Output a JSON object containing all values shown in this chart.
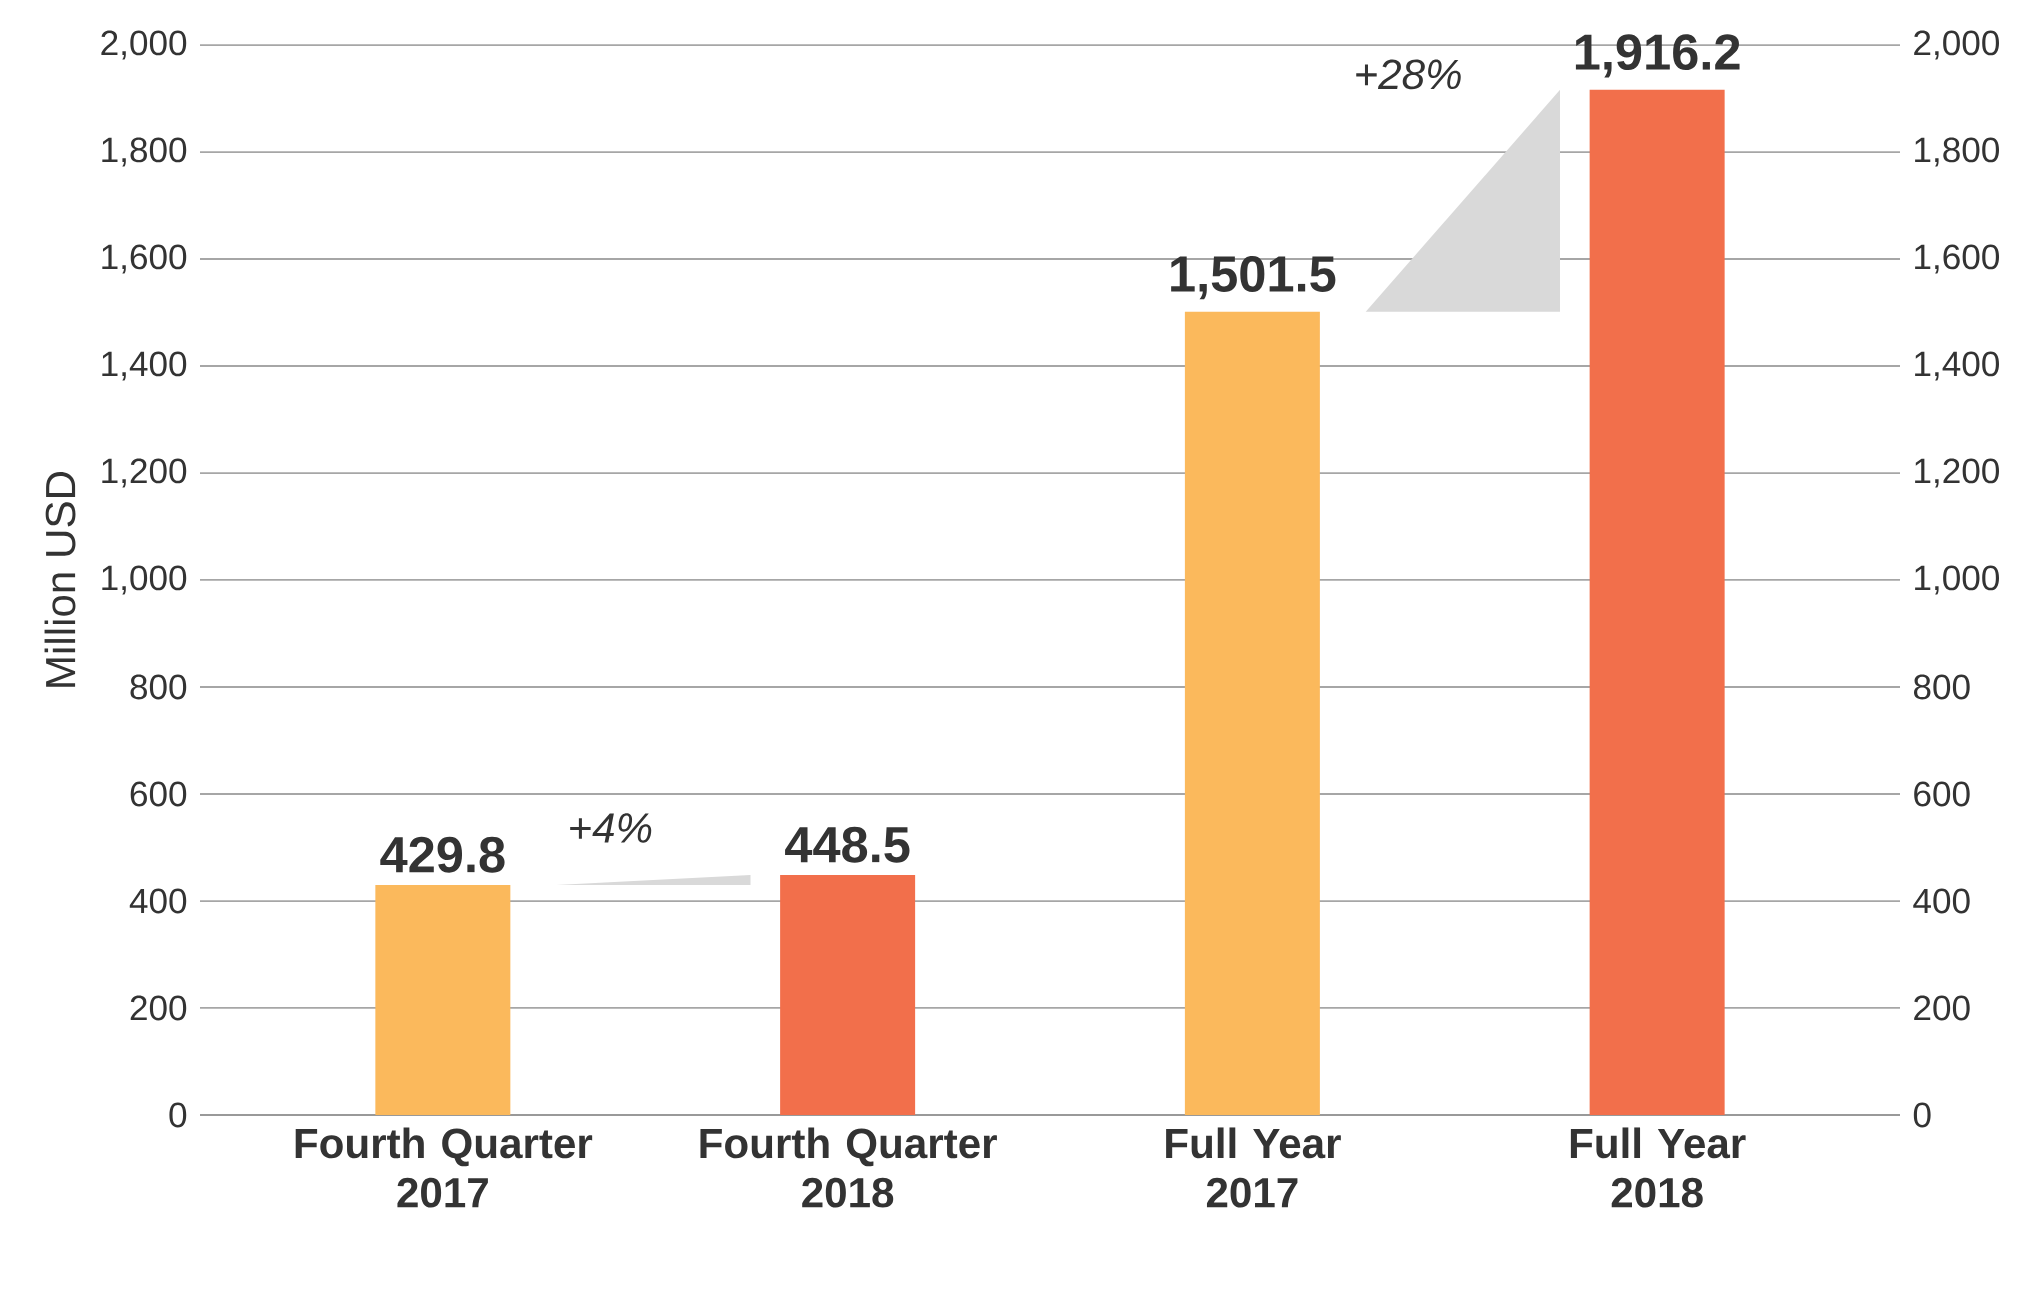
{
  "chart_data": {
    "type": "bar",
    "ylabel": "Million USD",
    "categories": [
      "Fourth Quarter\n2017",
      "Fourth Quarter\n2018",
      "Full Year\n2017",
      "Full Year\n2018"
    ],
    "values": [
      429.8,
      448.5,
      1501.5,
      1916.2
    ],
    "colors": [
      "#fbb95c",
      "#f26f4b",
      "#fbb95c",
      "#f26f4b"
    ],
    "value_labels": [
      "429.8",
      "448.5",
      "1,501.5",
      "1,916.2"
    ],
    "ylim": [
      0,
      2000
    ],
    "yticks": [
      0,
      200,
      400,
      600,
      800,
      {
        "value": 1000,
        "label": "1,000"
      },
      {
        "value": 1200,
        "label": "1,200"
      },
      {
        "value": 1400,
        "label": "1,400"
      },
      {
        "value": 1600,
        "label": "1,600"
      },
      {
        "value": 1800,
        "label": "1,800"
      },
      {
        "value": 2000,
        "label": "2,000"
      }
    ],
    "y2lim": [
      0,
      2000
    ],
    "y2ticks": [
      0,
      200,
      400,
      600,
      800,
      {
        "value": 1000,
        "label": "1,000"
      },
      {
        "value": 1200,
        "label": "1,200"
      },
      {
        "value": 1400,
        "label": "1,400"
      },
      {
        "value": 1600,
        "label": "1,600"
      },
      {
        "value": 1800,
        "label": "1,800"
      },
      {
        "value": 2000,
        "label": "2,000"
      }
    ],
    "grid": "y",
    "annotations": [
      "+4%",
      "+28%"
    ]
  }
}
